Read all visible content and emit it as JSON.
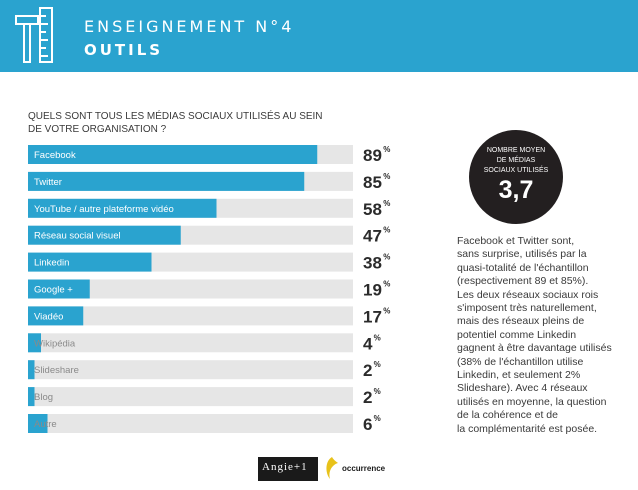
{
  "header": {
    "title": "ENSEIGNEMENT N°4",
    "subtitle": "OUTILS"
  },
  "question": "QUELS SONT TOUS LES MÉDIAS SOCIAUX UTILISÉS AU SEIN DE VOTRE ORGANISATION ?",
  "chart_data": {
    "type": "bar",
    "orientation": "horizontal",
    "categories": [
      "Facebook",
      "Twitter",
      "YouTube / autre plateforme vidéo",
      "Réseau social visuel",
      "Linkedin",
      "Google +",
      "Viadéo",
      "Wikipédia",
      "Slideshare",
      "Blog",
      "Autre"
    ],
    "values": [
      89,
      85,
      58,
      47,
      38,
      19,
      17,
      4,
      2,
      2,
      6
    ],
    "value_labels": [
      "89",
      "85",
      "58",
      "47",
      "38",
      "19",
      "17",
      "4",
      "2",
      "2",
      "6"
    ],
    "unit": "%",
    "xlim": [
      0,
      100
    ],
    "bar_color": "#2aa3cf",
    "track_color": "#e6e6e6"
  },
  "stat": {
    "label": "NOMBRE MOYEN\nDE MÉDIAS\nSOCIAUX UTILISÉS",
    "value": "3,7"
  },
  "paragraph": "Facebook et Twitter sont,\nsans surprise, utilisés par la\nquasi-totalité de l'échantillon\n(respectivement 89 et 85%).\nLes deux réseaux sociaux rois\ns'imposent très naturellement,\nmais des réseaux pleins de\npotentiel comme Linkedin\ngagnent à être davantage utilisés\n(38% de l'échantillon utilise\nLinkedin, et seulement 2%\nSlideshare). Avec 4 réseaux\nutilisés en moyenne, la question\nde la cohérence et de\nla complémentarité est posée.",
  "logos": {
    "angie": "Angie+1",
    "occurrence": "occurrence"
  },
  "colors": {
    "accent": "#2aa3cf",
    "dark": "#231f20"
  }
}
